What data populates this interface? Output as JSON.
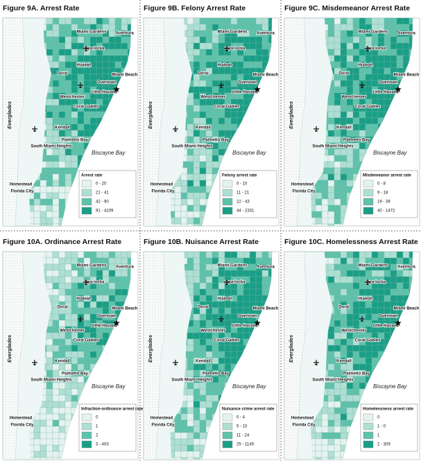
{
  "panels": [
    {
      "title": "Figure 9A. Arrest Rate",
      "legend_title": "Arrest rate",
      "legend": [
        "0 - 20",
        "21 - 41",
        "42 - 90",
        "91 - 4109"
      ]
    },
    {
      "title": "Figure 9B. Felony Arrest Rate",
      "legend_title": "Felony arrest rate",
      "legend": [
        "0 - 10",
        "11 - 21",
        "22 - 43",
        "44 - 2331"
      ]
    },
    {
      "title": "Figure 9C. Misdemeanor Arrest Rate",
      "legend_title": "Misdemeanor arrest rate",
      "legend": [
        "0 - 8",
        "9 - 18",
        "19 - 39",
        "40 - 1472"
      ]
    },
    {
      "title": "Figure 10A. Ordinance Arrest Rate",
      "legend_title": "Infraction-ordinance arrest rate",
      "legend": [
        "0",
        "1",
        "2",
        "3 - 403"
      ]
    },
    {
      "title": "Figure 10B. Nuisance Arrest Rate",
      "legend_title": "Nuisance crime arrest rate",
      "legend": [
        "0 - 4",
        "5 - 10",
        "11 - 24",
        "25 - 1149"
      ]
    },
    {
      "title": "Figure 10C. Homelessness Arrest Rate",
      "legend_title": "Homelessness arrest rate",
      "legend": [
        "0",
        "1 - 0",
        "1",
        "2 - 309"
      ]
    }
  ],
  "legend_colors": [
    "#e4f3ef",
    "#afdfd3",
    "#5ec2ab",
    "#1a9e86"
  ],
  "places": [
    "Miami Gardens",
    "Aventura",
    "Opa-locka",
    "Hialeah",
    "Doral",
    "Miami Beach",
    "Overtown",
    "Little Havana",
    "Westchester",
    "Coral Gables",
    "Kendall",
    "Palmetto Bay",
    "South Miami Heights",
    "Homestead",
    "Florida City"
  ],
  "bay": "Biscayne Bay",
  "everglades": "Everglades"
}
